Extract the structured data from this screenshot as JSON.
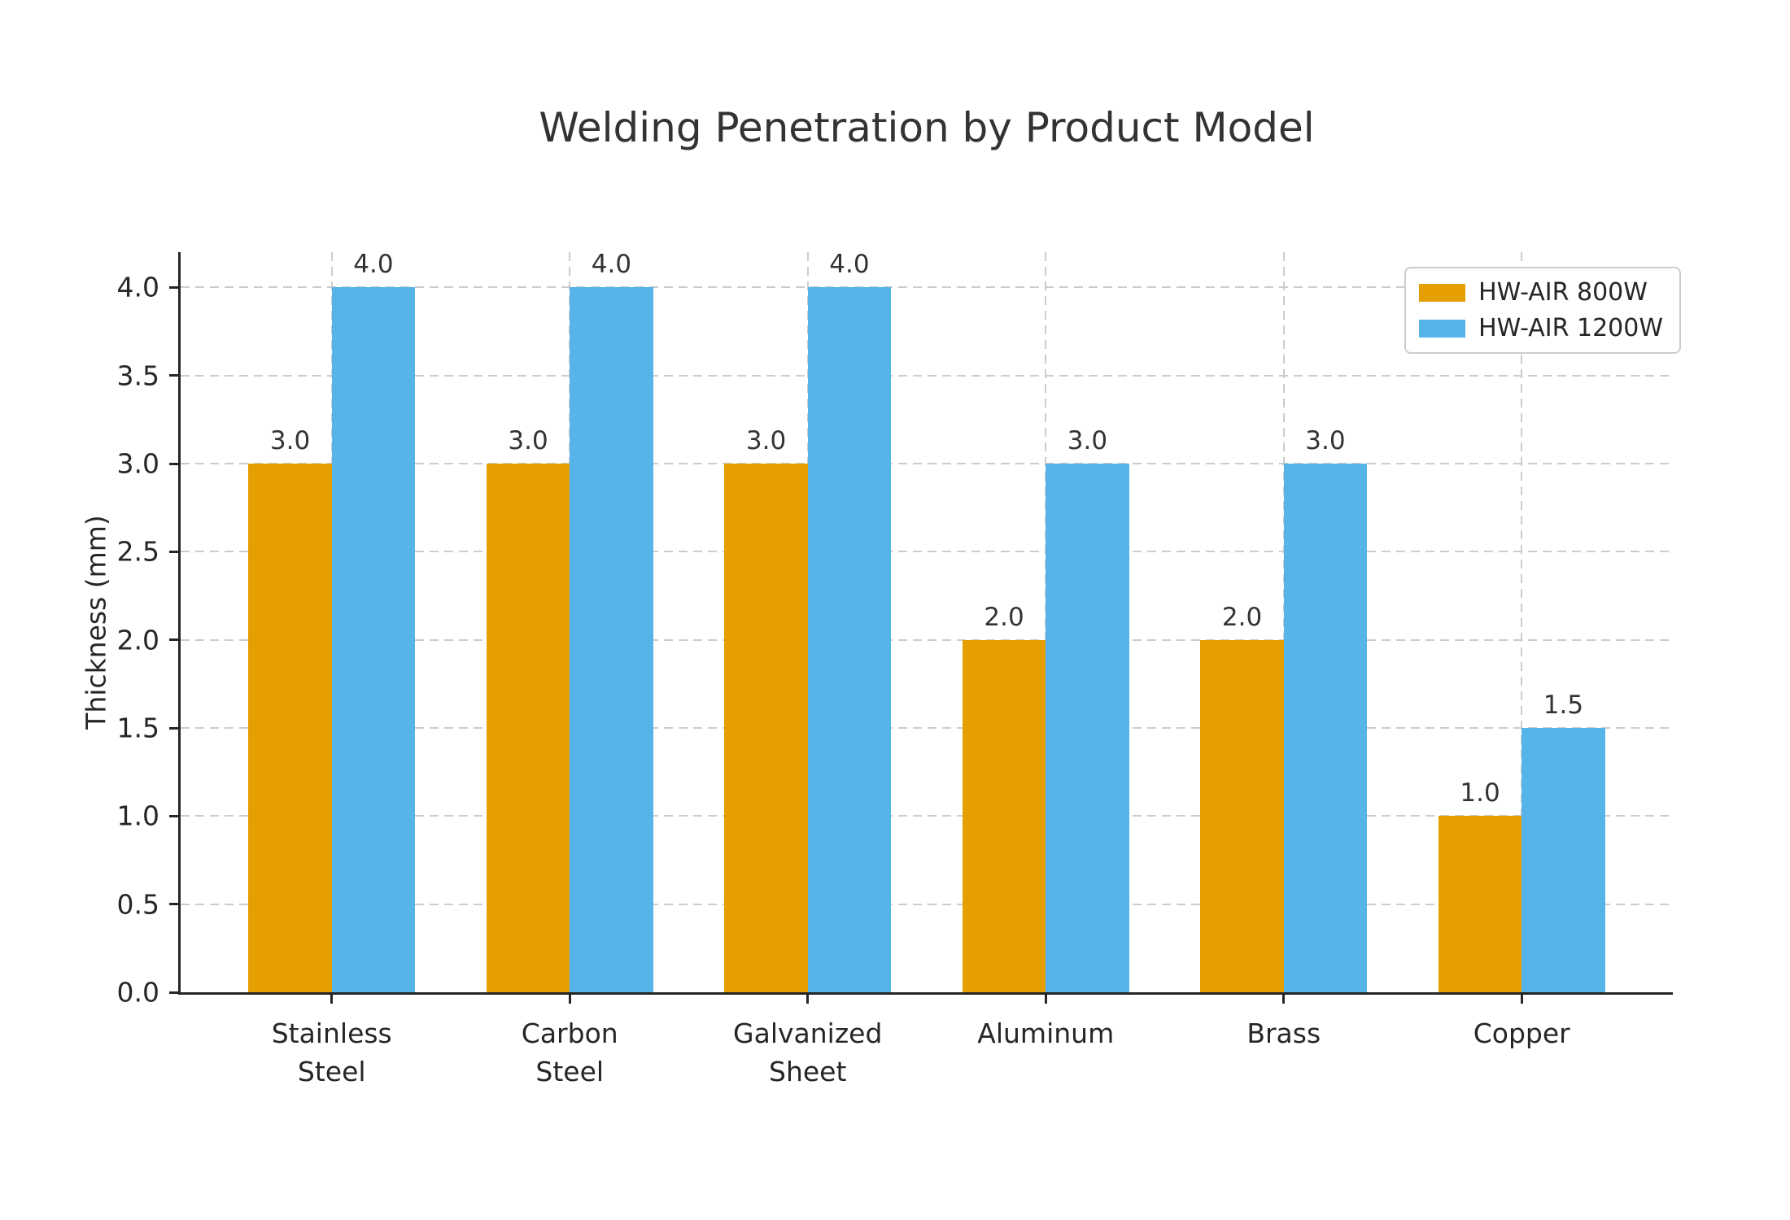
{
  "chart_data": {
    "type": "bar",
    "title": "Welding Penetration by Product Model",
    "xlabel": "",
    "ylabel": "Thickness (mm)",
    "categories": [
      "Stainless\nSteel",
      "Carbon\nSteel",
      "Galvanized\nSheet",
      "Aluminum",
      "Brass",
      "Copper"
    ],
    "series": [
      {
        "name": "HW-AIR 800W",
        "color": "#E69F00",
        "values": [
          3.0,
          3.0,
          3.0,
          2.0,
          2.0,
          1.0
        ]
      },
      {
        "name": "HW-AIR 1200W",
        "color": "#56B4E9",
        "values": [
          4.0,
          4.0,
          4.0,
          3.0,
          3.0,
          1.5
        ]
      }
    ],
    "ylim": [
      0,
      4.2
    ],
    "yticks": [
      0.0,
      0.5,
      1.0,
      1.5,
      2.0,
      2.5,
      3.0,
      3.5,
      4.0
    ],
    "ytick_labels": [
      "0.0",
      "0.5",
      "1.0",
      "1.5",
      "2.0",
      "2.5",
      "3.0",
      "3.5",
      "4.0"
    ],
    "grid": "both-dashed",
    "grid_color": "#cccccc",
    "spine_color": "#262626",
    "text_color": "#262626",
    "title_color": "#333333",
    "legend_position": "upper-right",
    "value_label_decimals": 1
  }
}
